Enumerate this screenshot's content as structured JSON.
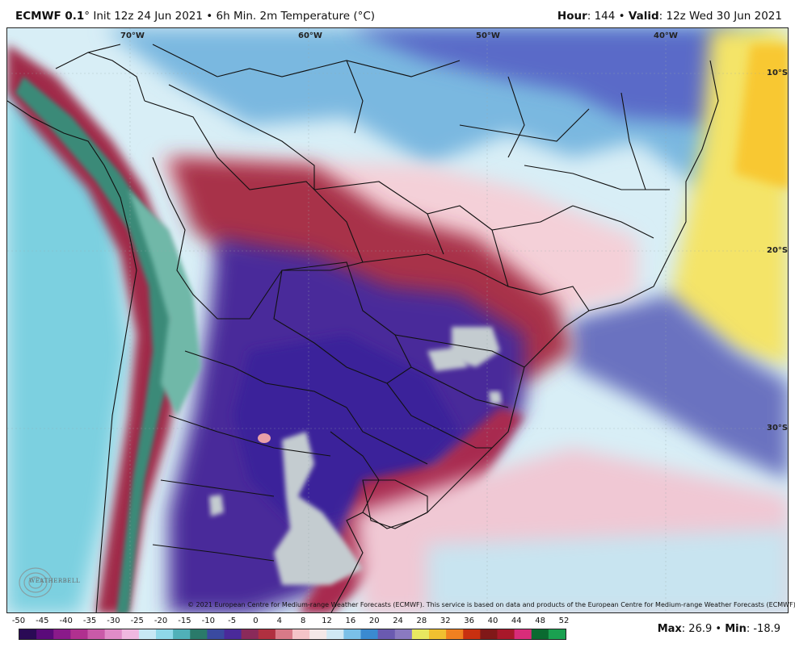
{
  "header": {
    "model": "ECMWF 0.1",
    "init": "° Init 12z 24 Jun 2021 • 6h Min. 2m Temperature (°C)",
    "hour_label": "Hour",
    "hour_value": ": 144 • ",
    "valid_label": "Valid",
    "valid_value": ": 12z Wed 30 Jun 2021"
  },
  "map": {
    "lon_labels": [
      "70°W",
      "60°W",
      "50°W",
      "40°W"
    ],
    "lat_labels": [
      "10°S",
      "20°S",
      "30°S"
    ],
    "credit": "© 2021 European Centre for Medium-range Weather Forecasts (ECMWF). This service is based on data and products of the European Centre for Medium-range Weather Forecasts (ECMWF).",
    "logo_text": "WEATHERBELL",
    "logo_icon": "weatherbell-logo-icon"
  },
  "scale": {
    "ticks": [
      "-50",
      "-45",
      "-40",
      "-35",
      "-30",
      "-25",
      "-20",
      "-15",
      "-10",
      "-5",
      "0",
      "4",
      "8",
      "12",
      "16",
      "20",
      "24",
      "28",
      "32",
      "36",
      "40",
      "44",
      "48",
      "52"
    ],
    "colors": [
      "#2a0a55",
      "#5a0a7a",
      "#8a1a8a",
      "#b0308f",
      "#c95aa8",
      "#e08cc8",
      "#f0b8e0",
      "#c8e8f4",
      "#8fd8e8",
      "#50b0b8",
      "#2a7a6a",
      "#3a4aa0",
      "#4a2a9a",
      "#8a2a5a",
      "#b03040",
      "#d87a88",
      "#f4c4c8",
      "#f4e8e8",
      "#d0e8f4",
      "#7ac0e8",
      "#3a8ad0",
      "#6a5ab0",
      "#8a7ac0",
      "#e8e860",
      "#f0c030",
      "#f08020",
      "#c83010",
      "#801818",
      "#a8182a",
      "#d82c7a",
      "#0a6a30",
      "#1aa050"
    ]
  },
  "stats": {
    "max_label": "Max",
    "max_value": ": 26.9 • ",
    "min_label": "Min",
    "min_value": ": -18.9"
  }
}
